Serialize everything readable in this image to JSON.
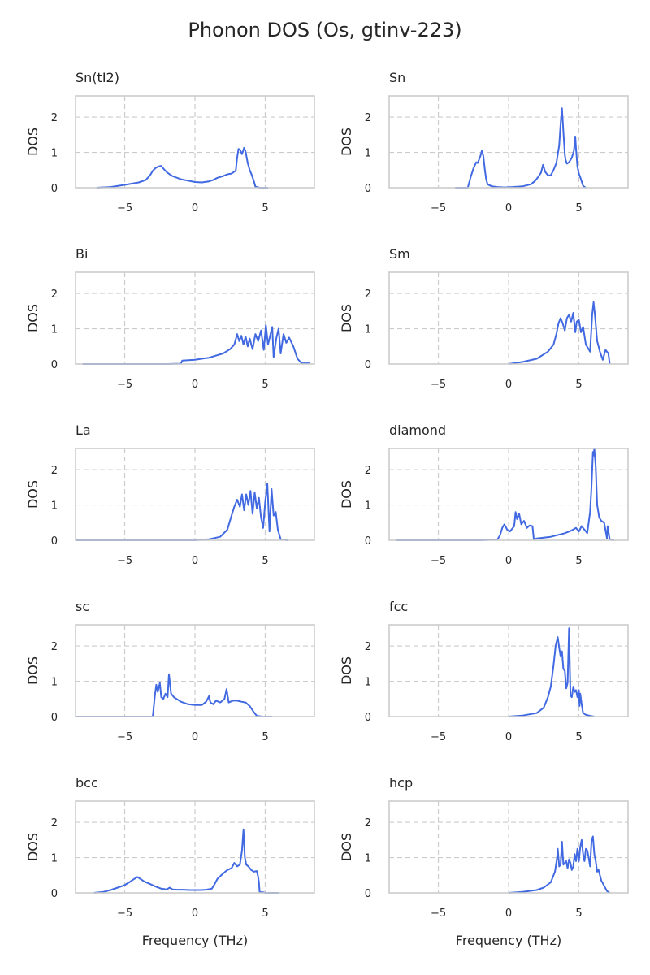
{
  "title": "Phonon DOS (Os, gtinv-223)",
  "chart_data": {
    "type": "line",
    "title": "Phonon DOS (Os, gtinv-223)",
    "xlabel": "Frequency (THz)",
    "ylabel": "DOS",
    "xlim": [
      -8.5,
      8.5
    ],
    "ylim": [
      0,
      2.6
    ],
    "xticks": [
      -5,
      0,
      5
    ],
    "yticks": [
      0,
      1,
      2
    ],
    "grid": true,
    "line_color": "#4169e1",
    "panels": [
      {
        "name": "Sn(tI2)",
        "x": [
          -7.0,
          -6.0,
          -5.0,
          -4.0,
          -3.5,
          -3.2,
          -3.0,
          -2.8,
          -2.6,
          -2.4,
          -2.2,
          -2.0,
          -1.8,
          -1.6,
          -1.4,
          -1.0,
          -0.5,
          0.0,
          0.5,
          1.0,
          1.3,
          1.6,
          2.0,
          2.3,
          2.6,
          2.9,
          3.0,
          3.1,
          3.2,
          3.35,
          3.5,
          3.6,
          3.75,
          3.9,
          4.0,
          4.2,
          4.3,
          4.6,
          5.2
        ],
        "y": [
          0.0,
          0.02,
          0.08,
          0.15,
          0.22,
          0.35,
          0.48,
          0.56,
          0.6,
          0.62,
          0.52,
          0.44,
          0.38,
          0.33,
          0.3,
          0.24,
          0.2,
          0.16,
          0.15,
          0.18,
          0.22,
          0.28,
          0.33,
          0.38,
          0.4,
          0.48,
          0.85,
          1.1,
          1.08,
          0.95,
          1.13,
          1.02,
          0.7,
          0.5,
          0.4,
          0.18,
          0.03,
          0.0,
          0.0
        ]
      },
      {
        "name": "Sn",
        "x": [
          -3.8,
          -2.9,
          -2.7,
          -2.5,
          -2.3,
          -2.2,
          -2.0,
          -1.9,
          -1.8,
          -1.7,
          -1.6,
          -1.5,
          -1.2,
          -0.8,
          -0.3,
          0.3,
          1.0,
          1.6,
          1.9,
          2.1,
          2.3,
          2.45,
          2.6,
          2.8,
          3.0,
          3.2,
          3.4,
          3.6,
          3.7,
          3.8,
          3.9,
          4.0,
          4.05,
          4.15,
          4.3,
          4.5,
          4.65,
          4.75,
          4.8,
          4.9,
          5.0,
          5.1,
          5.3,
          5.5
        ],
        "y": [
          0.0,
          0.0,
          0.3,
          0.55,
          0.72,
          0.7,
          0.9,
          1.05,
          0.9,
          0.55,
          0.25,
          0.1,
          0.04,
          0.02,
          0.01,
          0.02,
          0.04,
          0.1,
          0.2,
          0.3,
          0.42,
          0.65,
          0.45,
          0.35,
          0.35,
          0.5,
          0.7,
          1.2,
          1.8,
          2.25,
          1.6,
          0.95,
          0.8,
          0.68,
          0.72,
          0.85,
          1.05,
          1.45,
          1.1,
          0.6,
          0.4,
          0.3,
          0.05,
          0.0
        ]
      },
      {
        "name": "Bi",
        "x": [
          -8.0,
          -2.0,
          -1.0,
          -0.9,
          0.0,
          1.0,
          2.0,
          2.5,
          2.8,
          2.9,
          3.0,
          3.15,
          3.3,
          3.45,
          3.6,
          3.75,
          3.9,
          4.1,
          4.3,
          4.5,
          4.7,
          4.9,
          5.05,
          5.2,
          5.35,
          5.5,
          5.6,
          5.8,
          5.95,
          6.1,
          6.3,
          6.5,
          6.7,
          7.0,
          7.3,
          7.6,
          8.2
        ],
        "y": [
          0.0,
          0.0,
          0.01,
          0.1,
          0.12,
          0.18,
          0.3,
          0.42,
          0.55,
          0.7,
          0.85,
          0.65,
          0.8,
          0.55,
          0.78,
          0.5,
          0.72,
          0.42,
          0.85,
          0.65,
          0.95,
          0.4,
          1.1,
          0.55,
          0.8,
          1.05,
          0.2,
          0.75,
          1.0,
          0.3,
          0.85,
          0.6,
          0.75,
          0.5,
          0.15,
          0.02,
          0.02
        ]
      },
      {
        "name": "Sm",
        "x": [
          0.0,
          1.0,
          2.0,
          2.8,
          3.2,
          3.4,
          3.55,
          3.7,
          3.85,
          4.0,
          4.15,
          4.3,
          4.45,
          4.6,
          4.75,
          4.85,
          5.0,
          5.15,
          5.3,
          5.5,
          5.65,
          5.8,
          5.95,
          6.05,
          6.15,
          6.3,
          6.5,
          6.7,
          6.9,
          7.1,
          7.2
        ],
        "y": [
          0.0,
          0.06,
          0.15,
          0.35,
          0.55,
          0.85,
          1.15,
          1.3,
          1.15,
          0.95,
          1.3,
          1.4,
          1.2,
          1.45,
          0.9,
          1.2,
          1.25,
          0.9,
          1.05,
          0.55,
          0.45,
          0.35,
          1.4,
          1.75,
          1.35,
          0.65,
          0.35,
          0.12,
          0.4,
          0.3,
          0.0
        ]
      },
      {
        "name": "La",
        "x": [
          -8.5,
          0.0,
          1.0,
          1.8,
          2.3,
          2.6,
          2.8,
          3.0,
          3.2,
          3.35,
          3.5,
          3.65,
          3.8,
          3.95,
          4.1,
          4.25,
          4.4,
          4.55,
          4.7,
          4.85,
          5.0,
          5.15,
          5.3,
          5.45,
          5.6,
          5.75,
          5.9,
          6.1,
          6.6
        ],
        "y": [
          0.0,
          0.0,
          0.03,
          0.1,
          0.3,
          0.7,
          0.95,
          1.15,
          0.95,
          1.3,
          0.85,
          1.3,
          1.0,
          1.4,
          0.75,
          1.35,
          0.9,
          1.2,
          0.65,
          0.35,
          1.1,
          1.6,
          0.25,
          1.45,
          0.7,
          0.8,
          0.3,
          0.03,
          0.0
        ]
      },
      {
        "name": "diamond",
        "x": [
          -8.0,
          -2.0,
          -0.8,
          -0.6,
          -0.45,
          -0.3,
          -0.1,
          0.1,
          0.4,
          0.5,
          0.6,
          0.75,
          0.9,
          1.1,
          1.3,
          1.5,
          1.7,
          1.8,
          2.0,
          3.0,
          4.0,
          4.5,
          4.8,
          5.0,
          5.2,
          5.4,
          5.6,
          5.8,
          5.9,
          6.0,
          6.05,
          6.1,
          6.2,
          6.3,
          6.45,
          6.6,
          6.8,
          7.0,
          7.05,
          7.2,
          7.5
        ],
        "y": [
          0.0,
          0.0,
          0.02,
          0.15,
          0.35,
          0.45,
          0.3,
          0.25,
          0.4,
          0.8,
          0.6,
          0.75,
          0.45,
          0.55,
          0.35,
          0.42,
          0.4,
          0.02,
          0.05,
          0.1,
          0.2,
          0.28,
          0.35,
          0.25,
          0.4,
          0.3,
          0.2,
          0.8,
          1.5,
          2.5,
          2.4,
          2.6,
          2.1,
          1.0,
          0.65,
          0.55,
          0.5,
          0.05,
          0.4,
          0.02,
          0.0
        ]
      },
      {
        "name": "sc",
        "x": [
          -8.5,
          -3.0,
          -2.85,
          -2.75,
          -2.65,
          -2.5,
          -2.4,
          -2.25,
          -2.1,
          -1.95,
          -1.85,
          -1.7,
          -1.5,
          -1.0,
          -0.5,
          0.0,
          0.5,
          0.8,
          1.0,
          1.1,
          1.3,
          1.5,
          1.8,
          2.1,
          2.25,
          2.4,
          2.7,
          3.0,
          3.3,
          3.6,
          3.9,
          4.2,
          4.4,
          4.8,
          5.5
        ],
        "y": [
          0.0,
          0.0,
          0.6,
          0.9,
          0.7,
          0.95,
          0.55,
          0.5,
          0.65,
          0.55,
          1.2,
          0.65,
          0.55,
          0.42,
          0.35,
          0.33,
          0.33,
          0.42,
          0.58,
          0.4,
          0.35,
          0.45,
          0.4,
          0.5,
          0.78,
          0.4,
          0.45,
          0.45,
          0.42,
          0.4,
          0.3,
          0.12,
          0.02,
          0.0,
          0.0
        ]
      },
      {
        "name": "fcc",
        "x": [
          0.0,
          1.0,
          2.0,
          2.5,
          2.8,
          3.0,
          3.2,
          3.35,
          3.5,
          3.6,
          3.7,
          3.8,
          3.9,
          4.0,
          4.1,
          4.2,
          4.3,
          4.4,
          4.5,
          4.6,
          4.7,
          4.8,
          4.9,
          5.0,
          5.05,
          5.1,
          5.2,
          5.3,
          5.5,
          5.8,
          6.1
        ],
        "y": [
          0.0,
          0.03,
          0.1,
          0.25,
          0.55,
          0.85,
          1.45,
          2.0,
          2.25,
          1.95,
          1.7,
          1.85,
          1.35,
          1.3,
          0.8,
          0.95,
          2.5,
          0.6,
          0.55,
          0.85,
          0.7,
          0.75,
          0.55,
          0.75,
          0.3,
          0.65,
          0.35,
          0.1,
          0.05,
          0.02,
          0.0
        ]
      },
      {
        "name": "bcc",
        "x": [
          -7.2,
          -6.5,
          -6.0,
          -5.5,
          -5.0,
          -4.6,
          -4.3,
          -4.1,
          -3.9,
          -3.6,
          -3.2,
          -2.8,
          -2.4,
          -2.0,
          -1.8,
          -1.6,
          -1.2,
          -0.8,
          -0.4,
          0.0,
          0.4,
          0.8,
          1.2,
          1.4,
          1.6,
          2.0,
          2.3,
          2.6,
          2.8,
          3.0,
          3.2,
          3.35,
          3.45,
          3.55,
          3.65,
          3.8,
          4.0,
          4.2,
          4.4,
          4.5,
          4.55,
          4.6,
          4.8,
          5.0,
          6.0
        ],
        "y": [
          0.0,
          0.03,
          0.08,
          0.15,
          0.22,
          0.32,
          0.4,
          0.45,
          0.4,
          0.32,
          0.25,
          0.18,
          0.12,
          0.1,
          0.15,
          0.1,
          0.09,
          0.09,
          0.08,
          0.08,
          0.08,
          0.09,
          0.12,
          0.25,
          0.4,
          0.55,
          0.65,
          0.7,
          0.85,
          0.75,
          0.8,
          1.2,
          1.8,
          1.0,
          0.8,
          0.75,
          0.65,
          0.6,
          0.62,
          0.45,
          0.3,
          0.02,
          0.02,
          0.0,
          0.0
        ]
      },
      {
        "name": "hcp",
        "x": [
          0.0,
          1.0,
          2.0,
          2.5,
          3.0,
          3.3,
          3.45,
          3.5,
          3.6,
          3.7,
          3.8,
          3.9,
          4.0,
          4.1,
          4.2,
          4.3,
          4.4,
          4.5,
          4.6,
          4.7,
          4.8,
          4.9,
          5.0,
          5.1,
          5.2,
          5.3,
          5.4,
          5.5,
          5.6,
          5.7,
          5.8,
          5.9,
          6.0,
          6.1,
          6.2,
          6.3,
          6.4,
          6.6,
          7.0,
          7.2
        ],
        "y": [
          0.0,
          0.03,
          0.08,
          0.15,
          0.3,
          0.6,
          1.0,
          1.25,
          0.75,
          0.8,
          1.45,
          0.8,
          0.85,
          0.9,
          0.7,
          0.95,
          0.85,
          0.65,
          0.75,
          1.1,
          0.9,
          1.25,
          0.9,
          1.3,
          1.5,
          1.1,
          0.9,
          1.25,
          1.2,
          1.0,
          0.75,
          1.45,
          1.6,
          1.1,
          0.9,
          0.6,
          0.65,
          0.35,
          0.05,
          0.0
        ]
      }
    ]
  }
}
